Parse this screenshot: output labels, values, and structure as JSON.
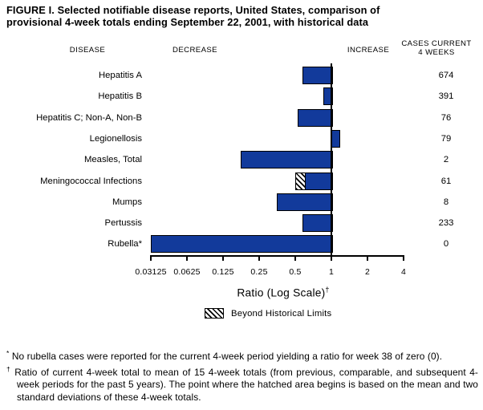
{
  "title": {
    "line1": "FIGURE I. Selected notifiable disease reports, United States, comparison of",
    "line2": "provisional 4-week totals ending September 22, 2001, with historical data"
  },
  "headers": {
    "disease": "DISEASE",
    "decrease": "DECREASE",
    "increase": "INCREASE",
    "cases_current_line1": "CASES CURRENT",
    "cases_current_line2": "4 WEEKS"
  },
  "chart_data": {
    "type": "bar",
    "orientation": "horizontal",
    "scale": "log2",
    "baseline_ratio": 1,
    "bar_color": "#123A9B",
    "axis": {
      "label": "Ratio (Log Scale)",
      "dagger": "†",
      "ticks": [
        0.03125,
        0.0625,
        0.125,
        0.25,
        0.5,
        1,
        2,
        4
      ],
      "tick_labels": [
        "0.03125",
        "0.0625",
        "0.125",
        "0.25",
        "0.5",
        "1",
        "2",
        "4"
      ],
      "min": 0.03125,
      "max": 4
    },
    "rows": [
      {
        "disease": "Hepatitis A",
        "ratio": 0.57,
        "cases": "674",
        "beyond_limits": false
      },
      {
        "disease": "Hepatitis B",
        "ratio": 0.86,
        "cases": "391",
        "beyond_limits": false
      },
      {
        "disease": "Hepatitis C; Non-A, Non-B",
        "ratio": 0.52,
        "cases": "76",
        "beyond_limits": false
      },
      {
        "disease": "Legionellosis",
        "ratio": 1.14,
        "cases": "79",
        "beyond_limits": false
      },
      {
        "disease": "Measles, Total",
        "ratio": 0.175,
        "cases": "2",
        "beyond_limits": false
      },
      {
        "disease": "Meningococcal Infections",
        "ratio": 0.5,
        "cases": "61",
        "beyond_limits": true,
        "hatch_to": 0.59
      },
      {
        "disease": "Mumps",
        "ratio": 0.35,
        "cases": "8",
        "beyond_limits": false
      },
      {
        "disease": "Pertussis",
        "ratio": 0.57,
        "cases": "233",
        "beyond_limits": false
      },
      {
        "disease": "Rubella*",
        "ratio": 0,
        "cases": "0",
        "beyond_limits": false,
        "truncated_at_axis_min": true
      }
    ],
    "legend": {
      "label": "Beyond Historical Limits"
    }
  },
  "footnotes": [
    {
      "marker": "*",
      "text": "No rubella cases were reported for the current 4-week period yielding a ratio for week 38 of zero (0)."
    },
    {
      "marker": "†",
      "text": "Ratio of current 4-week total to mean of 15 4-week totals (from previous, comparable, and subsequent 4-week periods for the past 5 years). The point where the hatched area begins is based on the mean and two standard deviations of these 4-week totals."
    }
  ]
}
